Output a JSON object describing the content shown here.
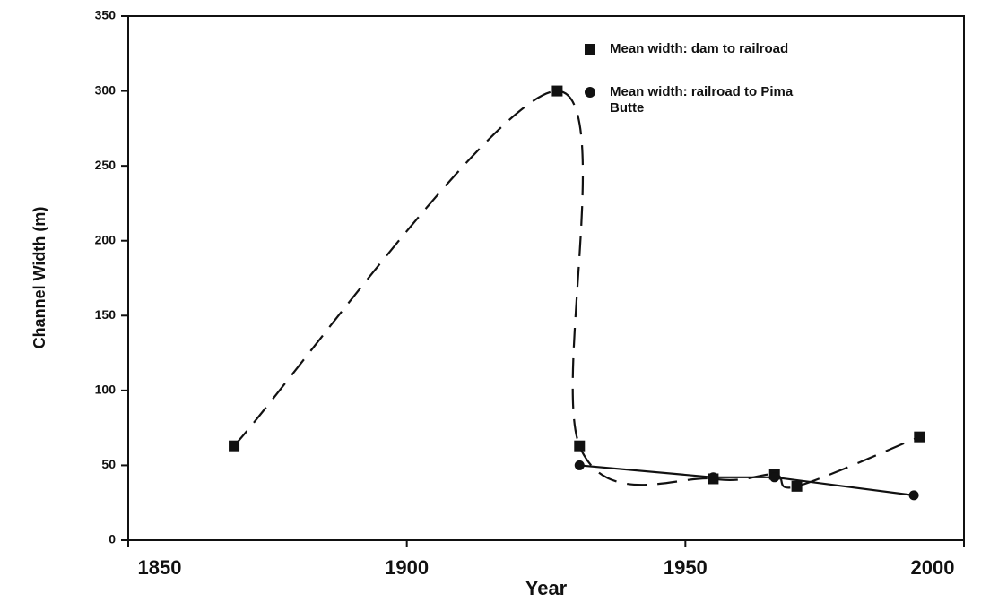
{
  "chart_data": {
    "type": "line",
    "xlabel": "Year",
    "ylabel": "Channel Width (m)",
    "xlim": [
      1850,
      2000
    ],
    "xticks": [
      1850,
      1900,
      1950,
      2000
    ],
    "ylim": [
      0,
      350
    ],
    "yticks": [
      0,
      50,
      100,
      150,
      200,
      250,
      300,
      350
    ],
    "grid": false,
    "legend": "upper right",
    "series": [
      {
        "name": "Mean width:  dam to railroad",
        "color": "#111111",
        "marker": "square",
        "linestyle": "dashed",
        "x": [
          1869,
          1927,
          1931,
          1955,
          1966,
          1970,
          1992
        ],
        "values": [
          63,
          300,
          63,
          41,
          44,
          36,
          69
        ]
      },
      {
        "name": "Mean width:  railroad to Pima Butte",
        "color": "#111111",
        "marker": "circle",
        "linestyle": "solid",
        "x": [
          1931,
          1955,
          1966,
          1991
        ],
        "values": [
          50,
          42,
          42,
          30
        ]
      }
    ]
  }
}
